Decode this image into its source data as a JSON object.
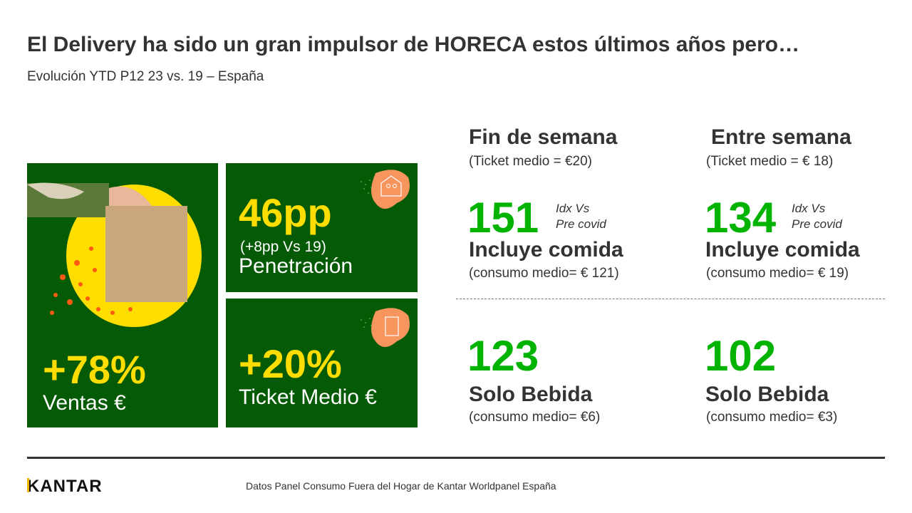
{
  "title": "El Delivery ha sido un gran impulsor de HORECA estos últimos años pero…",
  "subtitle": "Evolución YTD P12 23 vs. 19 – España",
  "tiles": {
    "ventas": {
      "value": "+78%",
      "label": "Ventas €"
    },
    "penetracion": {
      "value": "46pp",
      "note": "(+8pp Vs 19)",
      "label": "Penetración"
    },
    "ticket": {
      "value": "+20%",
      "label": "Ticket Medio €"
    }
  },
  "columns": [
    {
      "heading": "Fin de semana",
      "ticket": "(Ticket medio = €20)",
      "food_index": "151",
      "idx_label_1": "Idx Vs",
      "idx_label_2": "Pre covid",
      "food_label": "Incluye comida",
      "food_consumo": "(consumo medio= € 121)",
      "drink_index": "123",
      "drink_label": "Solo Bebida",
      "drink_consumo": "(consumo medio= €6)"
    },
    {
      "heading": "Entre semana",
      "ticket": "(Ticket medio = € 18)",
      "food_index": "134",
      "idx_label_1": "Idx Vs",
      "idx_label_2": "Pre covid",
      "food_label": "Incluye comida",
      "food_consumo": "(consumo medio= € 19)",
      "drink_index": "102",
      "drink_label": "Solo Bebida",
      "drink_consumo": "(consumo medio= €3)"
    }
  ],
  "footer": {
    "logo": "KANTAR",
    "source": "Datos Panel Consumo Fuera del Hogar de Kantar Worldpanel España"
  },
  "colors": {
    "panel": "#055b05",
    "accent_green": "#00b300",
    "yellow": "#ffdd00",
    "orange": "#f7955f"
  }
}
